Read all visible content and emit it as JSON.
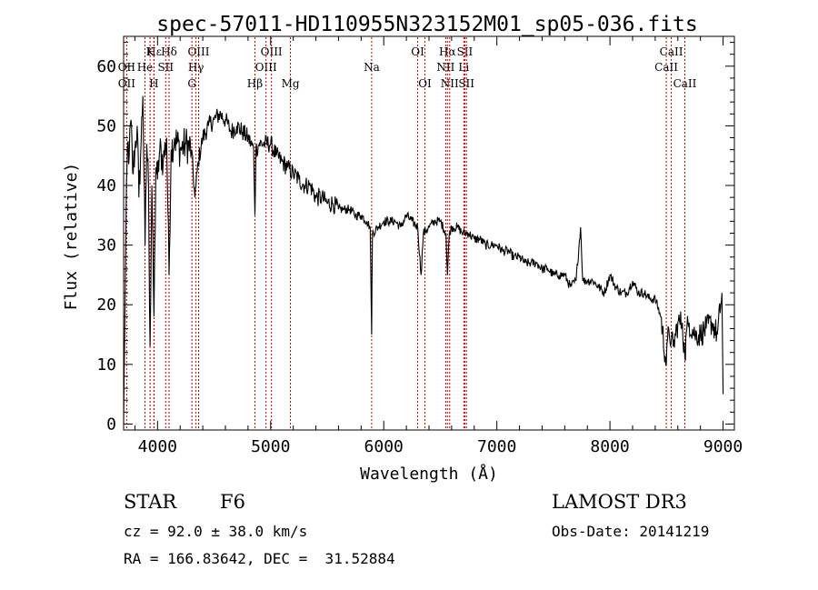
{
  "chart_data": {
    "type": "line",
    "title": "spec-57011-HD110955N323152M01_sp05-036.fits",
    "xlabel": "Wavelength (Å)",
    "ylabel": "Flux (relative)",
    "xlim": [
      3700,
      9100
    ],
    "ylim": [
      -1,
      65
    ],
    "x_ticks": [
      4000,
      5000,
      6000,
      7000,
      8000,
      9000
    ],
    "y_ticks": [
      0,
      10,
      20,
      30,
      40,
      50,
      60
    ],
    "series": [
      {
        "name": "flux",
        "x": [
          3700,
          3720,
          3735,
          3750,
          3765,
          3780,
          3800,
          3820,
          3835,
          3850,
          3870,
          3890,
          3905,
          3920,
          3934,
          3950,
          3968,
          3985,
          4000,
          4020,
          4050,
          4080,
          4102,
          4120,
          4150,
          4200,
          4250,
          4300,
          4330,
          4340,
          4360,
          4400,
          4450,
          4500,
          4550,
          4600,
          4650,
          4700,
          4750,
          4800,
          4850,
          4861,
          4870,
          4900,
          4950,
          5000,
          5050,
          5100,
          5150,
          5200,
          5250,
          5300,
          5350,
          5400,
          5450,
          5500,
          5550,
          5600,
          5650,
          5700,
          5750,
          5800,
          5850,
          5880,
          5893,
          5900,
          5950,
          6000,
          6050,
          6100,
          6150,
          6200,
          6250,
          6300,
          6330,
          6350,
          6400,
          6450,
          6500,
          6550,
          6563,
          6580,
          6600,
          6650,
          6700,
          6750,
          6800,
          6850,
          6900,
          6950,
          7000,
          7050,
          7100,
          7150,
          7200,
          7250,
          7300,
          7350,
          7400,
          7450,
          7500,
          7550,
          7600,
          7650,
          7700,
          7740,
          7760,
          7800,
          7850,
          7900,
          7950,
          8000,
          8050,
          8100,
          8150,
          8200,
          8250,
          8300,
          8350,
          8400,
          8450,
          8498,
          8520,
          8542,
          8560,
          8600,
          8640,
          8662,
          8680,
          8700,
          8750,
          8800,
          8850,
          8900,
          8950,
          8990,
          9000
        ],
        "y": [
          0,
          32,
          47,
          45,
          51,
          42,
          46,
          50,
          38,
          45,
          55,
          30,
          47,
          40,
          13,
          40,
          18,
          43,
          41,
          46,
          44,
          48,
          25,
          46,
          48,
          46,
          47,
          46,
          38,
          40,
          44,
          48,
          50,
          51,
          52,
          51,
          49,
          50,
          49,
          48,
          46,
          35,
          46,
          47,
          47,
          47,
          45,
          44,
          43,
          42,
          41,
          40,
          40,
          38,
          38,
          37,
          37,
          36,
          36,
          36,
          35,
          35,
          34,
          33,
          15,
          32,
          33,
          34,
          34,
          34,
          33,
          35,
          34,
          33,
          25,
          32,
          33,
          34,
          34,
          32,
          25,
          32,
          33,
          33,
          32,
          32,
          31,
          31,
          30,
          30,
          30,
          29,
          29,
          28,
          28,
          27,
          27,
          27,
          26,
          26,
          25,
          25,
          25,
          23,
          24,
          33,
          24,
          24,
          24,
          23,
          22,
          25,
          23,
          22,
          22,
          24,
          22,
          22,
          21,
          21,
          18,
          10,
          16,
          14,
          13,
          17,
          17,
          11,
          16,
          17,
          15,
          15,
          16,
          17,
          15,
          22,
          5
        ]
      }
    ],
    "lines": [
      {
        "label": "Hε",
        "wl": 3970,
        "row": 1
      },
      {
        "label": "K",
        "wl": 3934,
        "row": 1
      },
      {
        "label": "Hδ",
        "wl": 4102,
        "row": 1
      },
      {
        "label": "OIII",
        "wl": 4363,
        "row": 1
      },
      {
        "label": "OIII",
        "wl": 5007,
        "row": 1
      },
      {
        "label": "OI",
        "wl": 6300,
        "row": 1
      },
      {
        "label": "Hα",
        "wl": 6563,
        "row": 1
      },
      {
        "label": "SII",
        "wl": 6717,
        "row": 1
      },
      {
        "label": "CaII",
        "wl": 8542,
        "row": 1
      },
      {
        "label": "OII",
        "wl": 3727,
        "row": 2
      },
      {
        "label": "He",
        "wl": 3889,
        "row": 2
      },
      {
        "label": "SII",
        "wl": 4072,
        "row": 2
      },
      {
        "label": "Hγ",
        "wl": 4340,
        "row": 2
      },
      {
        "label": "OIII",
        "wl": 4959,
        "row": 2
      },
      {
        "label": "Na",
        "wl": 5893,
        "row": 2
      },
      {
        "label": "NII",
        "wl": 6548,
        "row": 2
      },
      {
        "label": "Li",
        "wl": 6708,
        "row": 2
      },
      {
        "label": "CaII",
        "wl": 8498,
        "row": 2
      },
      {
        "label": "OII",
        "wl": 3727,
        "row": 3
      },
      {
        "label": "H",
        "wl": 3968,
        "row": 3
      },
      {
        "label": "G",
        "wl": 4304,
        "row": 3
      },
      {
        "label": "Hβ",
        "wl": 4861,
        "row": 3
      },
      {
        "label": "Mg",
        "wl": 5175,
        "row": 3
      },
      {
        "label": "OI",
        "wl": 6364,
        "row": 3
      },
      {
        "label": "NII",
        "wl": 6583,
        "row": 3
      },
      {
        "label": "SII",
        "wl": 6731,
        "row": 3
      },
      {
        "label": "CaII",
        "wl": 8662,
        "row": 3
      }
    ]
  },
  "info": {
    "class": "STAR",
    "subclass": "F6",
    "survey": "LAMOST DR3",
    "cz": "cz = 92.0 ± 38.0 km/s",
    "obs_date": "Obs-Date: 20141219",
    "coords": "RA = 166.83642, DEC =  31.52884"
  }
}
